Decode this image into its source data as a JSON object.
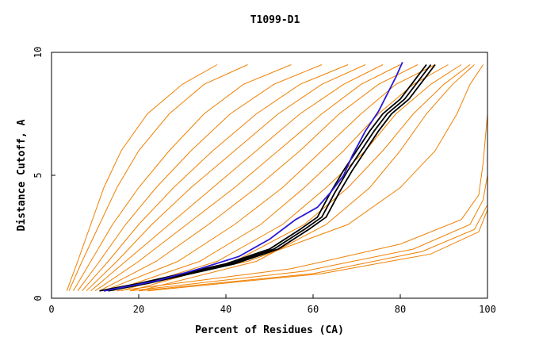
{
  "chart_data": {
    "type": "line",
    "title": "T1099-D1",
    "xlabel": "Percent of Residues (CA)",
    "ylabel": "Distance Cutoff, A",
    "xlim": [
      0,
      100
    ],
    "ylim": [
      0,
      10
    ],
    "x_ticks": [
      "0",
      "20",
      "40",
      "60",
      "80",
      "100"
    ],
    "y_ticks": [
      "0",
      "5",
      "10"
    ],
    "grid": false,
    "legend": "none",
    "colors": {
      "models": "#f08000",
      "highlight_black": "#000000",
      "highlight_blue": "#2a1ad8",
      "axes": "#000000"
    },
    "series": [
      {
        "color": "#f08000",
        "x": [
          3.5,
          6,
          9,
          12,
          16,
          22,
          30,
          38
        ],
        "y": [
          0.3,
          1.5,
          3,
          4.5,
          6,
          7.5,
          8.7,
          9.5
        ]
      },
      {
        "color": "#f08000",
        "x": [
          4,
          7,
          11,
          15,
          20,
          27,
          35,
          45
        ],
        "y": [
          0.3,
          1.5,
          3,
          4.5,
          6,
          7.5,
          8.7,
          9.5
        ]
      },
      {
        "color": "#f08000",
        "x": [
          5,
          9,
          14,
          20,
          27,
          35,
          44,
          55
        ],
        "y": [
          0.3,
          1.5,
          3,
          4.5,
          6,
          7.5,
          8.7,
          9.5
        ]
      },
      {
        "color": "#f08000",
        "x": [
          6,
          11,
          17,
          24,
          32,
          41,
          51,
          62
        ],
        "y": [
          0.3,
          1.5,
          3,
          4.5,
          6,
          7.5,
          8.7,
          9.5
        ]
      },
      {
        "color": "#f08000",
        "x": [
          7,
          13,
          20,
          28,
          37,
          47,
          57,
          68
        ],
        "y": [
          0.3,
          1.5,
          3,
          4.5,
          6,
          7.5,
          8.7,
          9.5
        ]
      },
      {
        "color": "#f08000",
        "x": [
          8,
          15,
          23,
          32,
          42,
          52,
          62,
          72
        ],
        "y": [
          0.3,
          1.5,
          3,
          4.5,
          6,
          7.5,
          8.7,
          9.5
        ]
      },
      {
        "color": "#f08000",
        "x": [
          9,
          17,
          27,
          37,
          47,
          57,
          67,
          76
        ],
        "y": [
          0.3,
          1.5,
          3,
          4.5,
          6,
          7.5,
          8.7,
          9.5
        ]
      },
      {
        "color": "#f08000",
        "x": [
          10,
          20,
          31,
          42,
          52,
          62,
          71,
          80
        ],
        "y": [
          0.3,
          1.5,
          3,
          4.5,
          6,
          7.5,
          8.7,
          9.5
        ]
      },
      {
        "color": "#f08000",
        "x": [
          11,
          24,
          36,
          47,
          57,
          66,
          75,
          84
        ],
        "y": [
          0.3,
          1.5,
          3,
          4.5,
          6,
          7.5,
          8.7,
          9.5
        ]
      },
      {
        "color": "#f08000",
        "x": [
          12,
          29,
          42,
          53,
          62,
          71,
          79,
          88
        ],
        "y": [
          0.3,
          1.5,
          3,
          4.5,
          6,
          7.5,
          8.7,
          9.5
        ]
      },
      {
        "color": "#f08000",
        "x": [
          14,
          34,
          48,
          58,
          67,
          75,
          83,
          91
        ],
        "y": [
          0.3,
          1.5,
          3,
          4.5,
          6,
          7.5,
          8.7,
          9.5
        ]
      },
      {
        "color": "#f08000",
        "x": [
          16,
          38,
          53,
          63,
          72,
          79,
          87,
          94
        ],
        "y": [
          0.3,
          1.5,
          3,
          4.5,
          6,
          7.5,
          8.7,
          9.5
        ]
      },
      {
        "color": "#f08000",
        "x": [
          18,
          42,
          58,
          68,
          76,
          83,
          90,
          96
        ],
        "y": [
          0.3,
          1.5,
          3,
          4.5,
          6,
          7.5,
          8.7,
          9.5
        ]
      },
      {
        "color": "#f08000",
        "x": [
          20,
          47,
          63,
          73,
          80,
          86,
          92,
          97
        ],
        "y": [
          0.3,
          1.5,
          3,
          4.5,
          6,
          7.5,
          8.7,
          9.5
        ]
      },
      {
        "color": "#f08000",
        "x": [
          12,
          45,
          68,
          80,
          88,
          93,
          96,
          99
        ],
        "y": [
          0.3,
          1.5,
          3,
          4.5,
          6,
          7.5,
          8.7,
          9.5
        ]
      },
      {
        "color": "#f08000",
        "x": [
          15,
          55,
          80,
          94,
          98,
          99,
          100,
          100
        ],
        "y": [
          0.3,
          1.2,
          2.2,
          3.2,
          4.2,
          5.5,
          7.5,
          9.5
        ]
      },
      {
        "color": "#f08000",
        "x": [
          18,
          58,
          83,
          96,
          99,
          100,
          100,
          100
        ],
        "y": [
          0.3,
          1.1,
          2,
          3,
          4,
          5,
          7,
          9.5
        ]
      },
      {
        "color": "#f08000",
        "x": [
          20,
          60,
          85,
          97,
          100,
          100,
          100,
          100
        ],
        "y": [
          0.3,
          1.0,
          1.9,
          2.8,
          3.8,
          5,
          7,
          9.5
        ]
      },
      {
        "color": "#f08000",
        "x": [
          22,
          62,
          87,
          98,
          100,
          100,
          100,
          100
        ],
        "y": [
          0.3,
          1.0,
          1.8,
          2.7,
          3.6,
          5,
          7,
          9.5
        ]
      },
      {
        "color": "#000000",
        "x": [
          11,
          20,
          30,
          40,
          50,
          57,
          61,
          64,
          67,
          70,
          73,
          76,
          80,
          83,
          86
        ],
        "y": [
          0.3,
          0.6,
          1.0,
          1.4,
          2.0,
          2.8,
          3.3,
          4.3,
          5.2,
          6.0,
          6.8,
          7.5,
          8.1,
          8.8,
          9.5
        ]
      },
      {
        "color": "#000000",
        "x": [
          12,
          21,
          31,
          41,
          51,
          58,
          62,
          65,
          68,
          71,
          74,
          77,
          81,
          84,
          87
        ],
        "y": [
          0.3,
          0.6,
          1.0,
          1.4,
          2.0,
          2.8,
          3.3,
          4.3,
          5.2,
          6.0,
          6.8,
          7.5,
          8.1,
          8.8,
          9.5
        ]
      },
      {
        "color": "#000000",
        "x": [
          13,
          22,
          32,
          42,
          52,
          59,
          63,
          66,
          69,
          72,
          75,
          78,
          82,
          85,
          88
        ],
        "y": [
          0.3,
          0.6,
          1.0,
          1.4,
          2.0,
          2.8,
          3.3,
          4.3,
          5.2,
          6.0,
          6.8,
          7.5,
          8.1,
          8.8,
          9.5
        ]
      },
      {
        "color": "#2a1ad8",
        "x": [
          12,
          24,
          34,
          43,
          50,
          56,
          61,
          64,
          67,
          69,
          72,
          75,
          77,
          79,
          80.5
        ],
        "y": [
          0.3,
          0.7,
          1.2,
          1.7,
          2.4,
          3.2,
          3.7,
          4.3,
          5.0,
          5.8,
          6.8,
          7.6,
          8.3,
          9.0,
          9.6
        ]
      }
    ]
  }
}
